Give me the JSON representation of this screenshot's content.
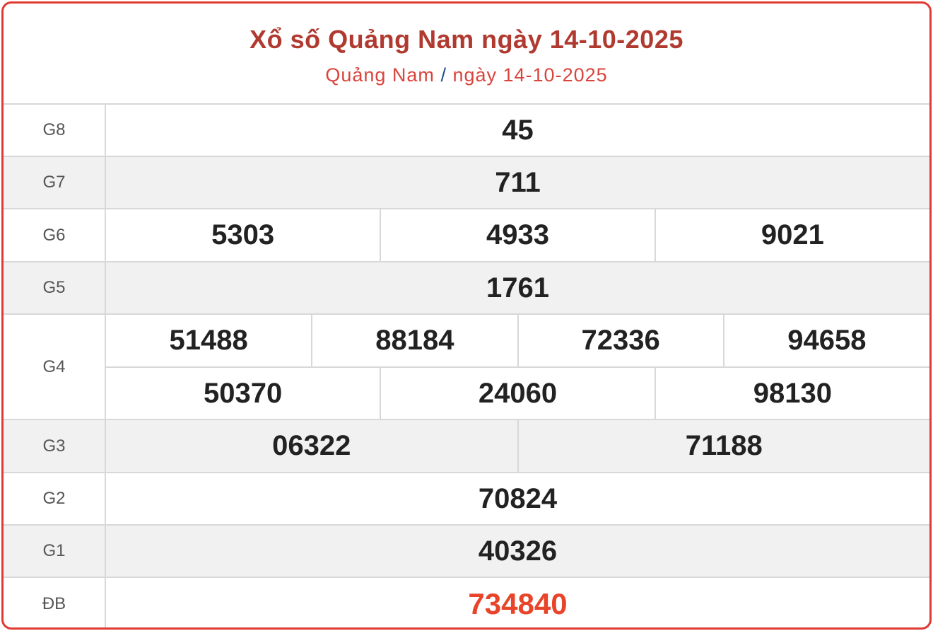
{
  "header": {
    "title": "Xổ số Quảng Nam ngày 14-10-2025",
    "breadcrumb_province": "Quảng Nam",
    "breadcrumb_sep": "/",
    "breadcrumb_date": "ngày 14-10-2025"
  },
  "prizes": {
    "g8": {
      "label": "G8",
      "numbers": [
        "45"
      ]
    },
    "g7": {
      "label": "G7",
      "numbers": [
        "711"
      ]
    },
    "g6": {
      "label": "G6",
      "numbers": [
        "5303",
        "4933",
        "9021"
      ]
    },
    "g5": {
      "label": "G5",
      "numbers": [
        "1761"
      ]
    },
    "g4": {
      "label": "G4",
      "numbers": [
        "51488",
        "88184",
        "72336",
        "94658",
        "50370",
        "24060",
        "98130"
      ]
    },
    "g3": {
      "label": "G3",
      "numbers": [
        "06322",
        "71188"
      ]
    },
    "g2": {
      "label": "G2",
      "numbers": [
        "70824"
      ]
    },
    "g1": {
      "label": "G1",
      "numbers": [
        "40326"
      ]
    },
    "db": {
      "label": "ĐB",
      "numbers": [
        "734840"
      ]
    }
  },
  "colors": {
    "border": "#e03a33",
    "title": "#b03a30",
    "special": "#e8442a",
    "row_alt": "#f1f1f1"
  }
}
